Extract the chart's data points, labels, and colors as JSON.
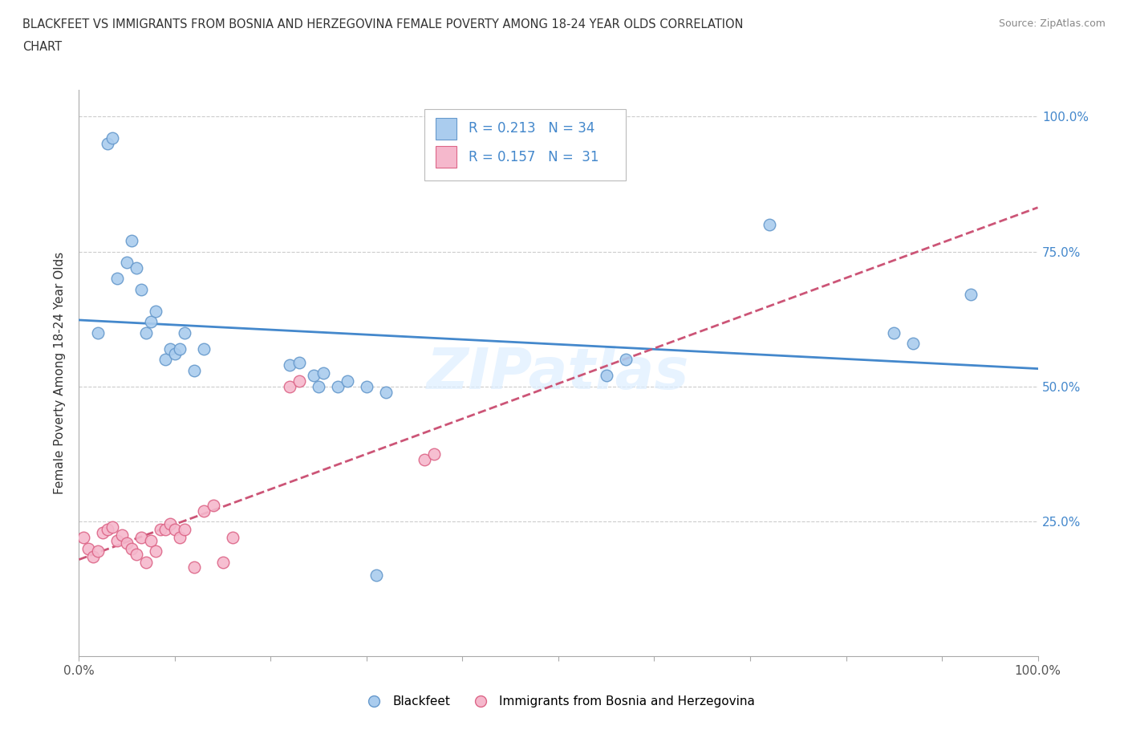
{
  "title_line1": "BLACKFEET VS IMMIGRANTS FROM BOSNIA AND HERZEGOVINA FEMALE POVERTY AMONG 18-24 YEAR OLDS CORRELATION",
  "title_line2": "CHART",
  "source_text": "Source: ZipAtlas.com",
  "ylabel": "Female Poverty Among 18-24 Year Olds",
  "xlim": [
    0.0,
    1.0
  ],
  "ylim": [
    0.0,
    1.05
  ],
  "xtick_vals": [
    0.0,
    0.1,
    0.2,
    0.3,
    0.4,
    0.5,
    0.6,
    0.7,
    0.8,
    0.9,
    1.0
  ],
  "xtick_labels_show": {
    "0.0": "0.0%",
    "1.0": "100.0%"
  },
  "ytick_vals": [
    0.25,
    0.5,
    0.75,
    1.0
  ],
  "ytick_labels": [
    "25.0%",
    "50.0%",
    "75.0%",
    "100.0%"
  ],
  "blue_R": 0.213,
  "blue_N": 34,
  "pink_R": 0.157,
  "pink_N": 31,
  "blue_scatter_color": "#aaccee",
  "blue_edge_color": "#6699cc",
  "pink_scatter_color": "#f5b8cc",
  "pink_edge_color": "#dd6688",
  "blue_line_color": "#4488cc",
  "pink_line_color": "#cc5577",
  "pink_line_style": "--",
  "watermark": "ZIPatlas",
  "watermark_color": "#ddeeff",
  "legend_label_blue": "Blackfeet",
  "legend_label_pink": "Immigrants from Bosnia and Herzegovina",
  "blue_scatter_x": [
    0.03,
    0.035,
    0.04,
    0.05,
    0.055,
    0.06,
    0.065,
    0.07,
    0.075,
    0.08,
    0.09,
    0.095,
    0.1,
    0.105,
    0.11,
    0.12,
    0.13,
    0.02,
    0.22,
    0.23,
    0.245,
    0.255,
    0.27,
    0.3,
    0.31,
    0.32,
    0.55,
    0.57,
    0.72,
    0.85,
    0.87,
    0.93,
    0.25,
    0.28
  ],
  "blue_scatter_y": [
    0.95,
    0.96,
    0.7,
    0.73,
    0.77,
    0.72,
    0.68,
    0.6,
    0.62,
    0.64,
    0.55,
    0.57,
    0.56,
    0.57,
    0.6,
    0.53,
    0.57,
    0.6,
    0.54,
    0.545,
    0.52,
    0.525,
    0.5,
    0.5,
    0.15,
    0.49,
    0.52,
    0.55,
    0.8,
    0.6,
    0.58,
    0.67,
    0.5,
    0.51
  ],
  "pink_scatter_x": [
    0.005,
    0.01,
    0.015,
    0.02,
    0.025,
    0.03,
    0.035,
    0.04,
    0.045,
    0.05,
    0.055,
    0.06,
    0.065,
    0.07,
    0.075,
    0.08,
    0.085,
    0.09,
    0.095,
    0.1,
    0.105,
    0.11,
    0.12,
    0.13,
    0.14,
    0.22,
    0.23,
    0.36,
    0.37,
    0.15,
    0.16
  ],
  "pink_scatter_y": [
    0.22,
    0.2,
    0.185,
    0.195,
    0.23,
    0.235,
    0.24,
    0.215,
    0.225,
    0.21,
    0.2,
    0.19,
    0.22,
    0.175,
    0.215,
    0.195,
    0.235,
    0.235,
    0.245,
    0.235,
    0.22,
    0.235,
    0.165,
    0.27,
    0.28,
    0.5,
    0.51,
    0.365,
    0.375,
    0.175,
    0.22
  ]
}
